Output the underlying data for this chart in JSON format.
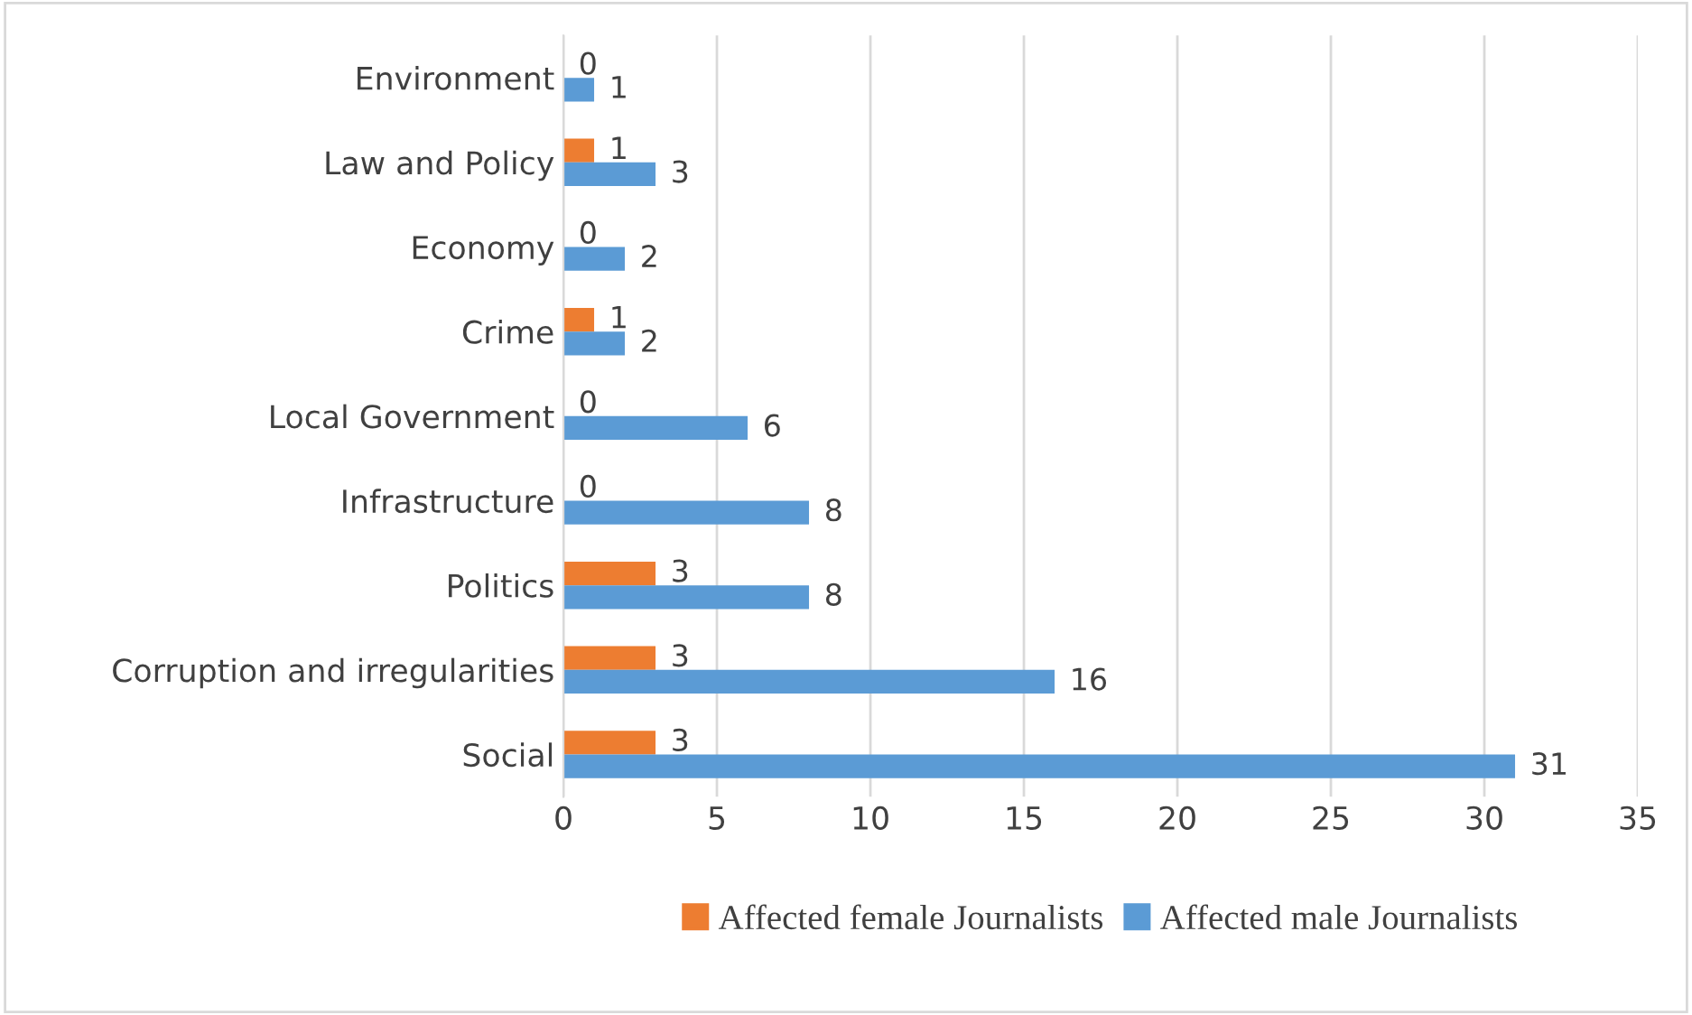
{
  "chart_data": {
    "type": "bar",
    "orientation": "horizontal",
    "categories": [
      "Environment",
      "Law and Policy",
      "Economy",
      "Crime",
      "Local Government",
      "Infrastructure",
      "Politics",
      "Corruption and irregularities",
      "Social"
    ],
    "series": [
      {
        "name": "Affected female Journalists",
        "color": "#ed7d31",
        "values": [
          0,
          1,
          0,
          1,
          0,
          0,
          3,
          3,
          3
        ]
      },
      {
        "name": "Affected male Journalists",
        "color": "#5b9bd5",
        "values": [
          1,
          3,
          2,
          2,
          6,
          8,
          8,
          16,
          31
        ]
      }
    ],
    "xlim": [
      0,
      35
    ],
    "xticks": [
      0,
      5,
      10,
      15,
      20,
      25,
      30,
      35
    ],
    "grid": "x",
    "legend": "bottom",
    "data_labels": true
  }
}
